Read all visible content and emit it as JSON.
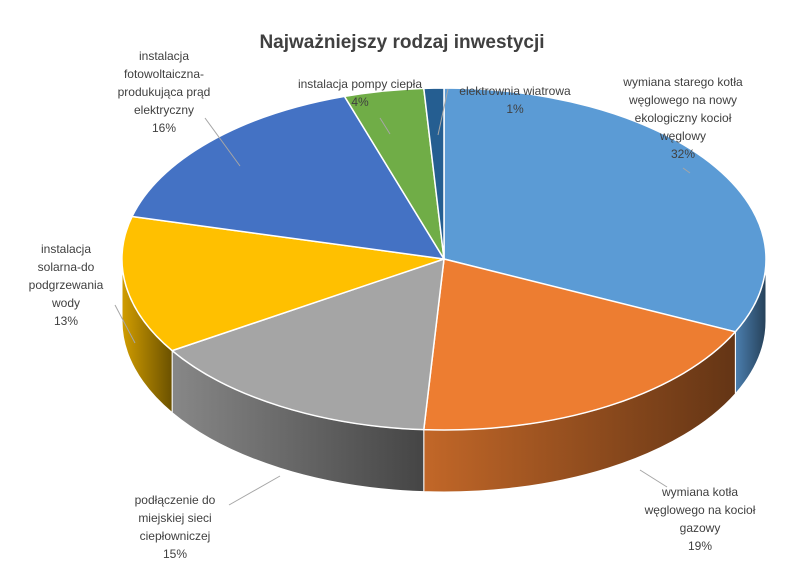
{
  "chart_data": {
    "type": "pie",
    "title": "Najważniejszy rodzaj inwestycji",
    "style": "3d-exploded-none",
    "start_angle_deg": 0,
    "direction": "clockwise",
    "slices": [
      {
        "label_lines": [
          "wymiana starego kotła",
          "węglowego na nowy",
          "ekologiczny kocioł",
          "węglowy"
        ],
        "percent_label": "32%",
        "value": 32,
        "color": "#5B9BD5"
      },
      {
        "label_lines": [
          "wymiana kotła",
          "węglowego na kocioł",
          "gazowy"
        ],
        "percent_label": "19%",
        "value": 19,
        "color": "#ED7D31"
      },
      {
        "label_lines": [
          "podłączenie do",
          "miejskiej sieci",
          "ciepłowniczej"
        ],
        "percent_label": "15%",
        "value": 15,
        "color": "#A5A5A5"
      },
      {
        "label_lines": [
          "instalacja",
          "solarna-do",
          "podgrzewania",
          "wody"
        ],
        "percent_label": "13%",
        "value": 13,
        "color": "#FFC000"
      },
      {
        "label_lines": [
          "instalacja",
          "fotowoltaiczna-",
          "produkująca prąd",
          "elektryczny"
        ],
        "percent_label": "16%",
        "value": 16,
        "color": "#4472C4"
      },
      {
        "label_lines": [
          "instalacja pompy ciepła"
        ],
        "percent_label": "4%",
        "value": 4,
        "color": "#70AD47"
      },
      {
        "label_lines": [
          "elektrownia wiatrowa"
        ],
        "percent_label": "1%",
        "value": 1,
        "color": "#255E91"
      }
    ],
    "legend": "none"
  }
}
